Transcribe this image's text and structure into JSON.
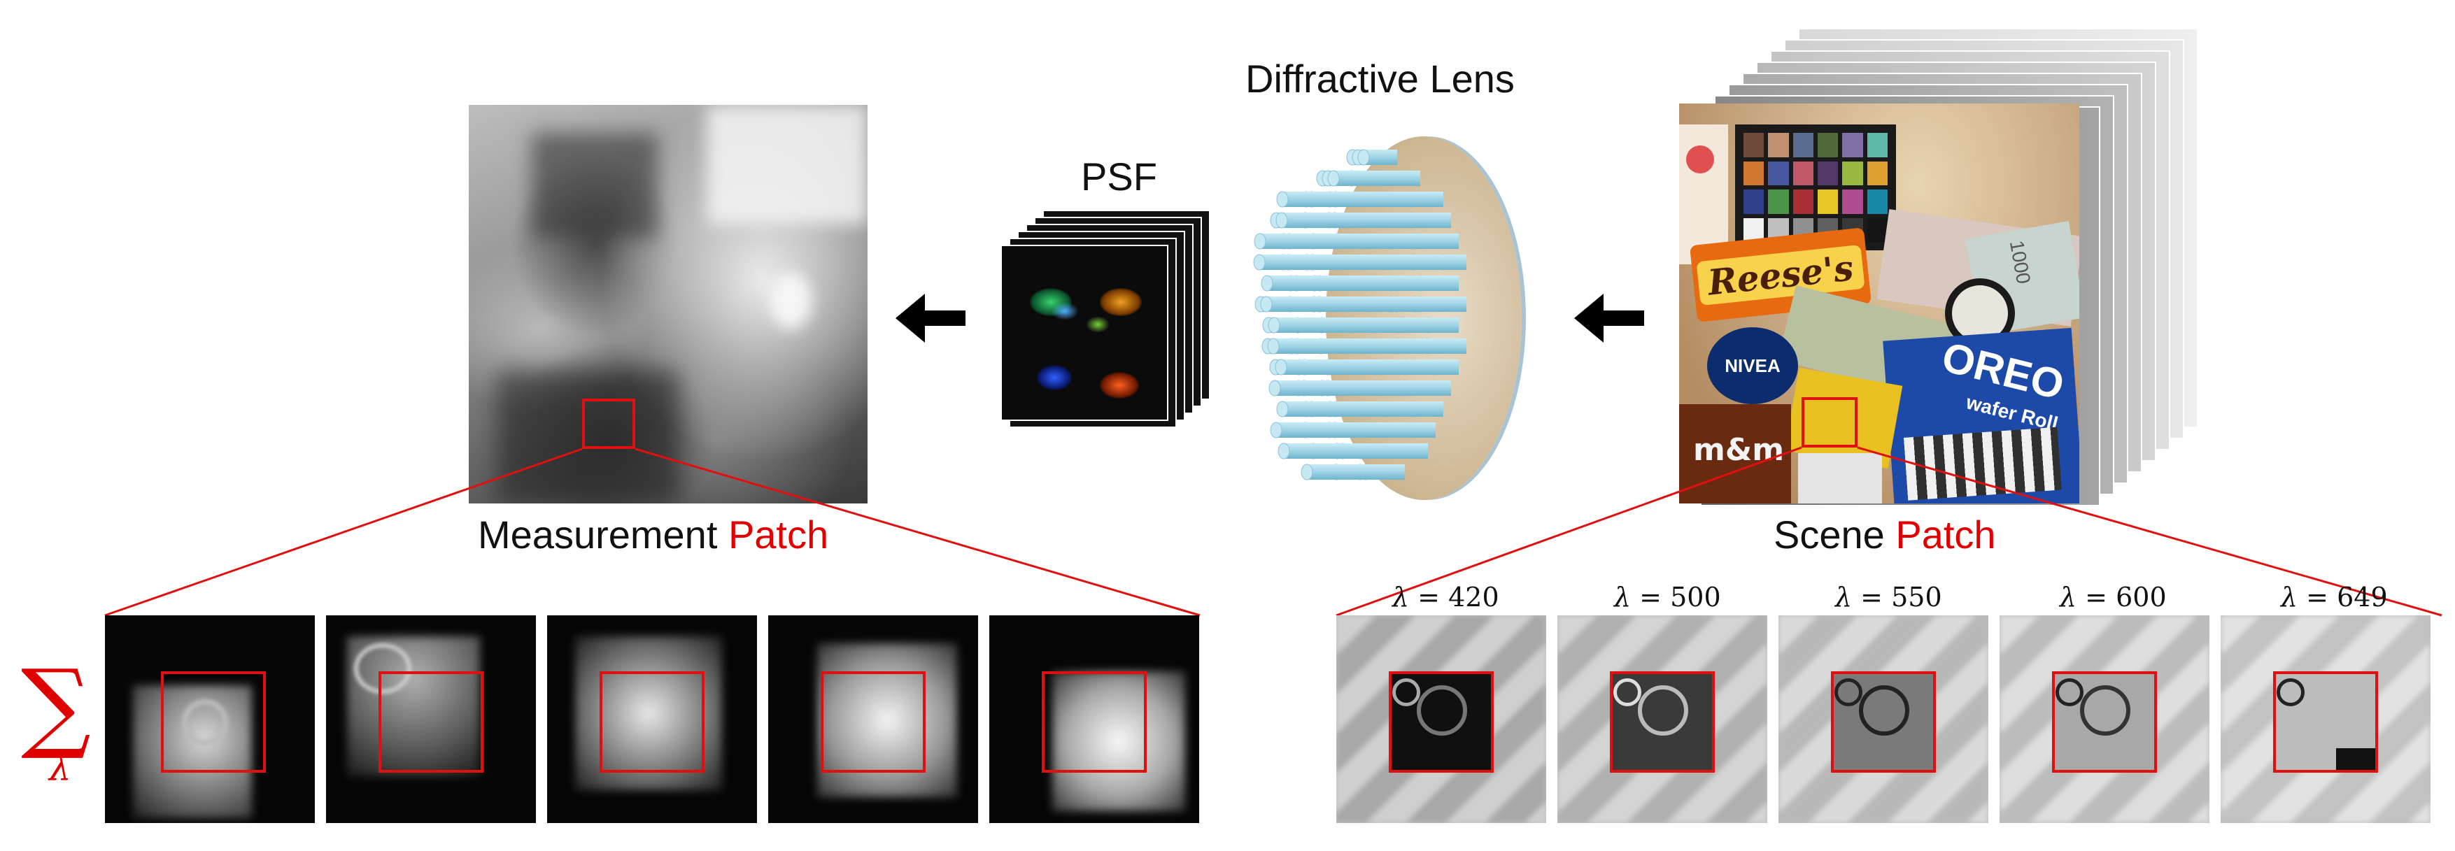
{
  "labels": {
    "diffractive_lens": "Diffractive Lens",
    "psf": "PSF",
    "measurement": "Measurement",
    "measurement_patch": "Patch",
    "scene": "Scene",
    "scene_patch": "Patch",
    "sum_symbol": "∑",
    "sum_sub": "λ"
  },
  "wavelengths": [
    {
      "sym": "λ",
      "eq": " = ",
      "val": "420"
    },
    {
      "sym": "λ",
      "eq": " = ",
      "val": "500"
    },
    {
      "sym": "λ",
      "eq": " = ",
      "val": "550"
    },
    {
      "sym": "λ",
      "eq": " = ",
      "val": "600"
    },
    {
      "sym": "λ",
      "eq": " = ",
      "val": "649"
    }
  ],
  "scene_items": {
    "reeses": "Reese's",
    "nivea": "NIVEA",
    "oreo": "OREO",
    "oreo_sub": "wafer Roll",
    "mm": "m&m",
    "bill": "1000"
  },
  "colors": {
    "accent_red": "#e00000",
    "pillar": "#9fd3e6"
  }
}
